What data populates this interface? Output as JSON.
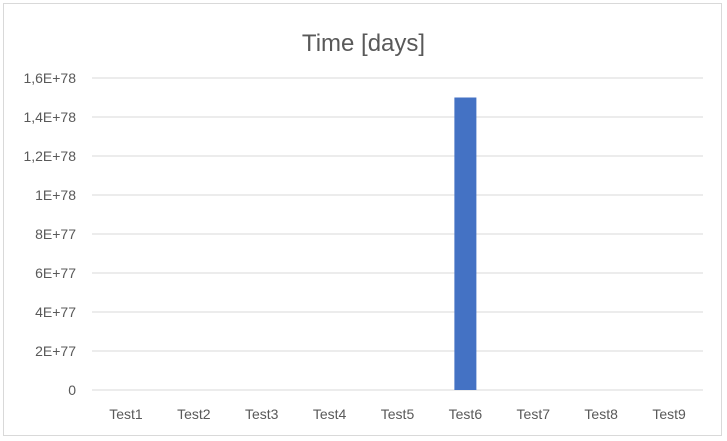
{
  "chart_data": {
    "type": "bar",
    "title": "Time [days]",
    "xlabel": "",
    "ylabel": "",
    "categories": [
      "Test1",
      "Test2",
      "Test3",
      "Test4",
      "Test5",
      "Test6",
      "Test7",
      "Test8",
      "Test9"
    ],
    "series": [
      {
        "values": [
          0,
          0,
          0,
          0,
          0,
          1.5e+78,
          0,
          0,
          0
        ],
        "color": "#4472c4"
      }
    ],
    "ylim": [
      0,
      1.6e+78
    ],
    "yticks": [
      0,
      2e+77,
      4e+77,
      6e+77,
      8e+77,
      1e+78,
      1.2e+78,
      1.4e+78,
      1.6e+78
    ],
    "ytick_labels": [
      "0",
      "2E+77",
      "4E+77",
      "6E+77",
      "8E+77",
      "1E+78",
      "1,2E+78",
      "1,4E+78",
      "1,6E+78"
    ],
    "grid": true,
    "legend": "none",
    "gridline_color": "#d9d9d9"
  }
}
